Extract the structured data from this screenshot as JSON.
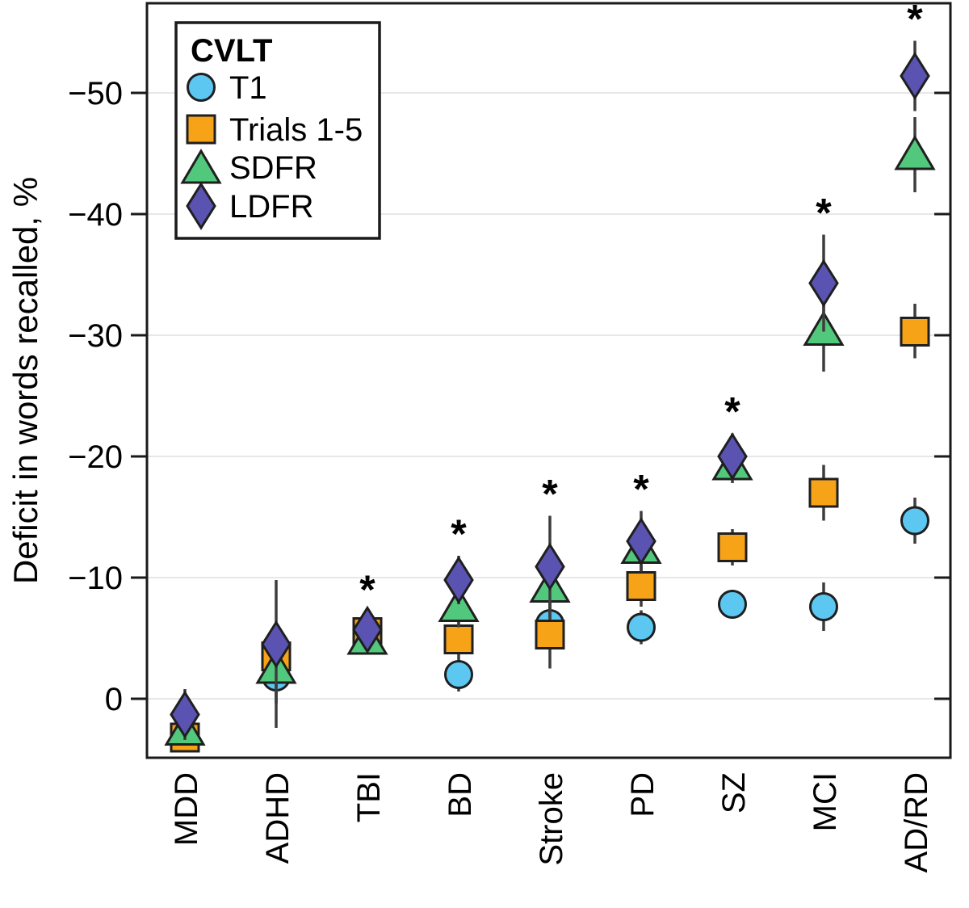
{
  "figure": {
    "background": "#ffffff",
    "axis_color": "#1a1a1a",
    "grid_color": "#e7e7e7",
    "errorbar_color": "#3d3d3d",
    "marker_edge_color": "#1f1f1f",
    "significance_marker": "*"
  },
  "chart_data": {
    "type": "scatter",
    "title": "",
    "xlabel": "",
    "ylabel": "Deficit in words recalled, %",
    "categories": [
      "MDD",
      "ADHD",
      "TBI",
      "BD",
      "Stroke",
      "PD",
      "SZ",
      "MCI",
      "AD/RD"
    ],
    "significant": [
      false,
      false,
      true,
      true,
      true,
      true,
      true,
      true,
      true
    ],
    "y_ticks": [
      0,
      -10,
      -20,
      -30,
      -40,
      -50
    ],
    "y_tick_labels": [
      "0",
      "−10",
      "−20",
      "−30",
      "−40",
      "−50"
    ],
    "ylim": [
      4.9,
      -57.5
    ],
    "grid": true,
    "legend": {
      "title": "CVLT",
      "position": "top-left",
      "entries": [
        "T1",
        "Trials 1-5",
        "SDFR",
        "LDFR"
      ]
    },
    "series": [
      {
        "name": "T1",
        "marker": "circle",
        "color": "#5cc8f2",
        "values": [
          3.0,
          -1.8,
          -5.2,
          -2.0,
          -6.2,
          -5.9,
          -7.8,
          -7.6,
          -14.7
        ],
        "err_lo": [
          1.6,
          -4.0,
          -6.5,
          -3.4,
          -8.0,
          -7.3,
          -9.0,
          -9.6,
          -16.6
        ],
        "err_hi": [
          4.2,
          0.4,
          -3.9,
          -0.6,
          -4.4,
          -4.5,
          -6.6,
          -5.6,
          -12.8
        ]
      },
      {
        "name": "Trials 1-5",
        "marker": "square",
        "color": "#f7a318",
        "values": [
          3.2,
          -3.5,
          -5.5,
          -4.9,
          -5.3,
          -9.3,
          -12.5,
          -17.0,
          -30.3
        ],
        "err_lo": [
          2.0,
          -6.0,
          -6.9,
          -6.4,
          -8.1,
          -11.0,
          -14.0,
          -19.3,
          -32.6
        ],
        "err_hi": [
          4.4,
          -1.0,
          -4.1,
          -3.4,
          -2.5,
          -7.6,
          -11.0,
          -14.7,
          -28.1
        ]
      },
      {
        "name": "SDFR",
        "marker": "triangle",
        "color": "#52c87c",
        "values": [
          2.5,
          -2.6,
          -5.0,
          -7.7,
          -9.3,
          -12.5,
          -19.4,
          -30.5,
          -45.0
        ],
        "err_lo": [
          1.2,
          -5.5,
          -6.3,
          -9.5,
          -12.0,
          -14.5,
          -21.0,
          -33.5,
          -48.0
        ],
        "err_hi": [
          3.8,
          0.3,
          -3.7,
          -5.9,
          -6.6,
          -10.5,
          -17.8,
          -27.0,
          -41.8
        ]
      },
      {
        "name": "LDFR",
        "marker": "diamond",
        "color": "#5a53b2",
        "values": [
          1.3,
          -4.5,
          -5.7,
          -9.8,
          -10.9,
          -13.0,
          -20.0,
          -34.3,
          -51.4
        ],
        "err_lo": [
          -0.8,
          -9.8,
          -7.2,
          -11.8,
          -15.1,
          -15.5,
          -21.9,
          -38.3,
          -54.3
        ],
        "err_hi": [
          3.4,
          2.4,
          -4.2,
          -7.8,
          -6.7,
          -10.5,
          -18.1,
          -30.3,
          -48.5
        ]
      }
    ]
  }
}
